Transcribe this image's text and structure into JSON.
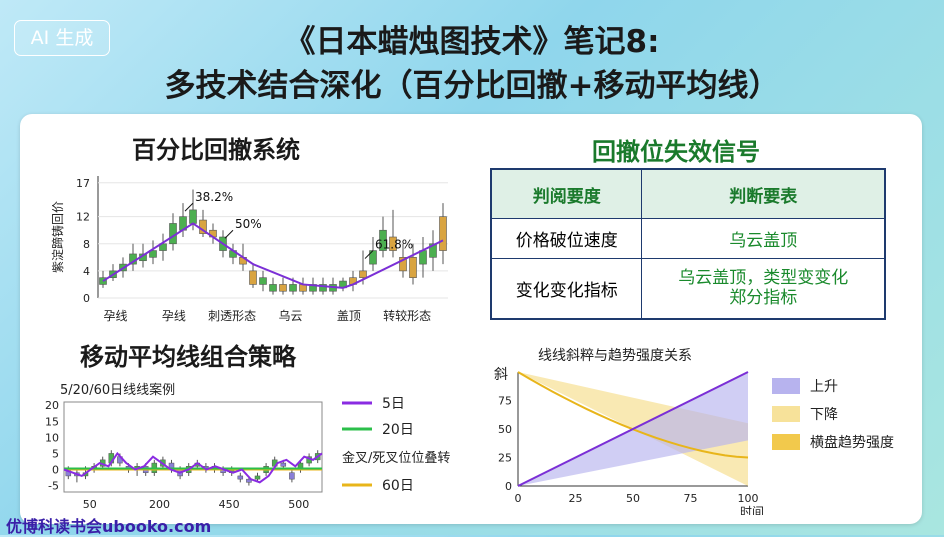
{
  "badge": "AI 生成",
  "title_line1": "《日本蜡烛图技术》笔记8:",
  "title_line2": "多技术结合深化（百分比回撤+移动平均线）",
  "sec1_title": "百分比回撤系统",
  "sec2_title": "回撤位失效信号",
  "sec3_title": "移动平均线组合策略",
  "table": {
    "headers": [
      "判阅要度",
      "判断要表"
    ],
    "rows": [
      {
        "left": "价格破位速度",
        "right": "乌云盖顶"
      },
      {
        "left": "变化变化指标",
        "right": "乌云盖顶，类型变变化\n郑分指标"
      }
    ]
  },
  "chart_data": [
    {
      "type": "candlestick",
      "ylabel": "紫淀蹄铸回价",
      "yticks": [
        0,
        4,
        8,
        12,
        17
      ],
      "ylim": [
        0,
        18
      ],
      "xlabels": [
        "孕线",
        "孕线",
        "刺透形态",
        "乌云",
        "盖顶",
        "转较形态"
      ],
      "annotations": [
        {
          "text": "38.2%",
          "index": 8
        },
        {
          "text": "50%",
          "index": 12
        },
        {
          "text": "61.8%",
          "index": 26
        }
      ],
      "candles": [
        {
          "o": 2,
          "c": 3,
          "l": 1.5,
          "h": 4,
          "up": true
        },
        {
          "o": 3,
          "c": 4,
          "l": 2.5,
          "h": 5,
          "up": true
        },
        {
          "o": 4,
          "c": 5,
          "l": 3,
          "h": 6,
          "up": true
        },
        {
          "o": 5,
          "c": 6.5,
          "l": 4,
          "h": 8,
          "up": true
        },
        {
          "o": 5.5,
          "c": 6.5,
          "l": 4.5,
          "h": 8,
          "up": true
        },
        {
          "o": 6,
          "c": 7,
          "l": 5,
          "h": 8.5,
          "up": true
        },
        {
          "o": 7,
          "c": 8,
          "l": 5.5,
          "h": 9.5,
          "up": true
        },
        {
          "o": 8,
          "c": 11,
          "l": 7,
          "h": 12.5,
          "up": true
        },
        {
          "o": 10,
          "c": 12,
          "l": 9,
          "h": 14,
          "up": true
        },
        {
          "o": 11,
          "c": 13,
          "l": 10,
          "h": 16,
          "up": true
        },
        {
          "o": 11.5,
          "c": 9.5,
          "l": 9,
          "h": 13,
          "up": false
        },
        {
          "o": 10,
          "c": 9,
          "l": 8,
          "h": 11,
          "up": false
        },
        {
          "o": 9,
          "c": 7,
          "l": 6,
          "h": 10,
          "up": true
        },
        {
          "o": 7,
          "c": 6,
          "l": 5,
          "h": 8,
          "up": true
        },
        {
          "o": 6,
          "c": 5,
          "l": 4,
          "h": 8,
          "up": false
        },
        {
          "o": 4,
          "c": 2,
          "l": 1.5,
          "h": 5,
          "up": false
        },
        {
          "o": 3,
          "c": 2,
          "l": 1,
          "h": 4,
          "up": true
        },
        {
          "o": 2,
          "c": 1,
          "l": 0.5,
          "h": 3,
          "up": true
        },
        {
          "o": 2,
          "c": 1,
          "l": 0.5,
          "h": 3,
          "up": false
        },
        {
          "o": 2,
          "c": 1,
          "l": 0.5,
          "h": 3,
          "up": true
        },
        {
          "o": 2,
          "c": 1,
          "l": 0.5,
          "h": 3,
          "up": false
        },
        {
          "o": 1,
          "c": 2,
          "l": 0.5,
          "h": 3,
          "up": true
        },
        {
          "o": 2,
          "c": 1,
          "l": 0.5,
          "h": 3,
          "up": true
        },
        {
          "o": 1,
          "c": 2,
          "l": 0.5,
          "h": 3,
          "up": true
        },
        {
          "o": 1.5,
          "c": 2.5,
          "l": 1,
          "h": 3,
          "up": true
        },
        {
          "o": 2,
          "c": 3,
          "l": 1,
          "h": 4,
          "up": false
        },
        {
          "o": 3,
          "c": 4,
          "l": 2,
          "h": 7,
          "up": false
        },
        {
          "o": 5,
          "c": 7,
          "l": 4,
          "h": 9,
          "up": true
        },
        {
          "o": 7,
          "c": 10,
          "l": 6,
          "h": 12,
          "up": true
        },
        {
          "o": 7,
          "c": 9,
          "l": 6,
          "h": 13,
          "up": false
        },
        {
          "o": 4,
          "c": 6,
          "l": 3,
          "h": 8,
          "up": false
        },
        {
          "o": 3,
          "c": 6,
          "l": 2,
          "h": 8,
          "up": false
        },
        {
          "o": 5,
          "c": 7,
          "l": 3,
          "h": 9,
          "up": true
        },
        {
          "o": 6,
          "c": 8,
          "l": 4,
          "h": 10,
          "up": true
        },
        {
          "o": 7,
          "c": 12,
          "l": 5,
          "h": 14,
          "up": false
        }
      ],
      "retracement_line": [
        [
          0,
          2.5
        ],
        [
          9,
          11
        ],
        [
          15,
          5
        ],
        [
          20,
          2
        ],
        [
          24,
          1.5
        ],
        [
          25,
          2
        ],
        [
          34,
          8.5
        ]
      ]
    },
    {
      "type": "line",
      "title": "5/20/60日线线案例",
      "yticks": [
        -5,
        0,
        5,
        10,
        15,
        20
      ],
      "xticks": [
        50,
        200,
        450,
        500
      ],
      "ylim": [
        -7,
        21
      ],
      "legend": [
        {
          "name": "5日",
          "color": "#8a2be2"
        },
        {
          "name": "20日",
          "color": "#2bbf4a"
        },
        {
          "name": "金叉/死叉位位叠转",
          "color": null
        },
        {
          "name": "60日",
          "color": "#e8b51a"
        }
      ],
      "series5": [
        0,
        -1,
        -2,
        0,
        2,
        1,
        5,
        2,
        0,
        1,
        4,
        2,
        0,
        -1,
        0,
        2,
        0,
        1,
        0,
        -1,
        0,
        -3,
        -4,
        -2,
        2,
        3,
        1,
        4,
        3,
        5
      ],
      "candles": [
        {
          "o": 0,
          "c": -2,
          "l": -3,
          "h": 1
        },
        {
          "o": -1,
          "c": -2,
          "l": -4,
          "h": 0
        },
        {
          "o": -2,
          "c": -1,
          "l": -3,
          "h": 1
        },
        {
          "o": 0,
          "c": 1,
          "l": -1,
          "h": 2
        },
        {
          "o": 1,
          "c": 3,
          "l": 0,
          "h": 4
        },
        {
          "o": 2,
          "c": 5,
          "l": 1,
          "h": 6
        },
        {
          "o": 4,
          "c": 2,
          "l": 1,
          "h": 5
        },
        {
          "o": 1,
          "c": 0,
          "l": -1,
          "h": 2
        },
        {
          "o": 0,
          "c": 1,
          "l": -2,
          "h": 2
        },
        {
          "o": 1,
          "c": -1,
          "l": -2,
          "h": 2
        },
        {
          "o": -1,
          "c": 2,
          "l": -2,
          "h": 3
        },
        {
          "o": 1,
          "c": 3,
          "l": 0,
          "h": 4
        },
        {
          "o": 2,
          "c": 0,
          "l": -1,
          "h": 3
        },
        {
          "o": 0,
          "c": -2,
          "l": -3,
          "h": 1
        },
        {
          "o": -1,
          "c": 1,
          "l": -2,
          "h": 2
        },
        {
          "o": 1,
          "c": 2,
          "l": 0,
          "h": 3
        },
        {
          "o": 1,
          "c": 0,
          "l": -1,
          "h": 2
        },
        {
          "o": 0,
          "c": 1,
          "l": -1,
          "h": 2
        },
        {
          "o": 0,
          "c": -1,
          "l": -2,
          "h": 1
        },
        {
          "o": -1,
          "c": 0,
          "l": -2,
          "h": 1
        },
        {
          "o": -2,
          "c": -3,
          "l": -4,
          "h": -1
        },
        {
          "o": -3,
          "c": -4,
          "l": -5,
          "h": -2
        },
        {
          "o": -3,
          "c": -2,
          "l": -4,
          "h": -1
        },
        {
          "o": -1,
          "c": 1,
          "l": -2,
          "h": 2
        },
        {
          "o": 1,
          "c": 3,
          "l": 0,
          "h": 4
        },
        {
          "o": 2,
          "c": 1,
          "l": 0,
          "h": 3
        },
        {
          "o": -1,
          "c": -3,
          "l": -4,
          "h": 0
        },
        {
          "o": 0,
          "c": 2,
          "l": -1,
          "h": 3
        },
        {
          "o": 2,
          "c": 4,
          "l": 1,
          "h": 5
        },
        {
          "o": 3,
          "c": 5,
          "l": 2,
          "h": 6
        }
      ]
    },
    {
      "type": "area",
      "title": "线线斜粹与趋势强度关系",
      "ylabel": "斜",
      "xlabel": "时间",
      "xticks": [
        0,
        25,
        50,
        75,
        100
      ],
      "yticks": [
        0,
        25,
        50,
        75
      ],
      "xlim": [
        0,
        100
      ],
      "ylim": [
        0,
        100
      ],
      "legend": [
        {
          "name": "上升",
          "color": "#b7b3ee"
        },
        {
          "name": "下降",
          "color": "#f7e29a"
        },
        {
          "name": "横盘趋势强度",
          "color": "#f2c94c"
        }
      ],
      "rise_line": [
        [
          0,
          0
        ],
        [
          100,
          100
        ]
      ],
      "fall_line": [
        [
          0,
          100
        ],
        [
          100,
          25
        ]
      ]
    }
  ],
  "watermark": "优博科读书会ubooko.com"
}
